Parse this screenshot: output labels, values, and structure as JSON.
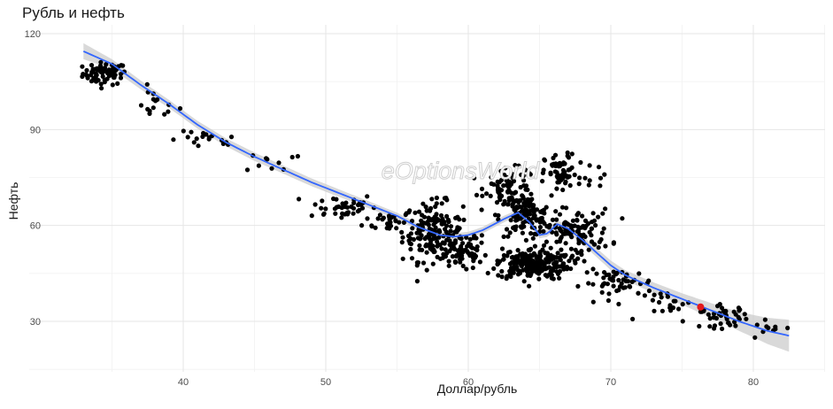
{
  "chart_data": {
    "type": "scatter",
    "title": "Рубль и нефть",
    "xlabel": "Доллар/рубль",
    "ylabel": "Нефть",
    "xlim": [
      31,
      86
    ],
    "ylim": [
      15,
      122
    ],
    "x_ticks": [
      40,
      50,
      60,
      70,
      80
    ],
    "y_ticks": [
      30,
      60,
      90,
      120
    ],
    "grid": true,
    "watermark": "eOptionsWorld",
    "point_color": "#000000",
    "highlight_color": "#e31a1c",
    "smooth_line_color": "#3366ff",
    "ribbon_color": "#cccccc",
    "clusters": [
      {
        "cx": 34.5,
        "cy": 107.5,
        "sx": 1.1,
        "sy": 2.5,
        "n": 70
      },
      {
        "cx": 38.0,
        "cy": 98.0,
        "sx": 1.2,
        "sy": 3.5,
        "n": 15
      },
      {
        "cx": 41.5,
        "cy": 86.5,
        "sx": 1.8,
        "sy": 2.0,
        "n": 18
      },
      {
        "cx": 46.5,
        "cy": 80.0,
        "sx": 1.5,
        "sy": 2.5,
        "n": 10
      },
      {
        "cx": 51.0,
        "cy": 66.0,
        "sx": 1.8,
        "sy": 3.0,
        "n": 40
      },
      {
        "cx": 54.5,
        "cy": 61.5,
        "sx": 1.3,
        "sy": 2.5,
        "n": 30
      },
      {
        "cx": 57.5,
        "cy": 58.0,
        "sx": 1.5,
        "sy": 6.5,
        "n": 160
      },
      {
        "cx": 59.5,
        "cy": 52.0,
        "sx": 1.3,
        "sy": 4.5,
        "n": 70
      },
      {
        "cx": 63.0,
        "cy": 72.0,
        "sx": 1.3,
        "sy": 4.0,
        "n": 80
      },
      {
        "cx": 64.0,
        "cy": 63.0,
        "sx": 1.3,
        "sy": 4.5,
        "n": 120
      },
      {
        "cx": 64.5,
        "cy": 48.0,
        "sx": 1.8,
        "sy": 3.5,
        "n": 220
      },
      {
        "cx": 66.5,
        "cy": 76.0,
        "sx": 0.8,
        "sy": 4.5,
        "n": 60
      },
      {
        "cx": 67.5,
        "cy": 58.0,
        "sx": 1.8,
        "sy": 5.0,
        "n": 110
      },
      {
        "cx": 69.0,
        "cy": 75.0,
        "sx": 1.0,
        "sy": 3.0,
        "n": 10
      },
      {
        "cx": 70.5,
        "cy": 42.0,
        "sx": 1.8,
        "sy": 3.0,
        "n": 50
      },
      {
        "cx": 74.5,
        "cy": 35.0,
        "sx": 1.5,
        "sy": 3.5,
        "n": 25
      },
      {
        "cx": 78.0,
        "cy": 31.5,
        "sx": 1.2,
        "sy": 2.5,
        "n": 40
      },
      {
        "cx": 81.0,
        "cy": 28.0,
        "sx": 1.0,
        "sy": 1.5,
        "n": 10
      }
    ],
    "highlight_point": {
      "x": 76.3,
      "y": 34.5
    },
    "smooth_line": [
      [
        33.0,
        114.5
      ],
      [
        35.0,
        110.5
      ],
      [
        37.0,
        104.0
      ],
      [
        39.0,
        98.0
      ],
      [
        41.0,
        91.5
      ],
      [
        43.0,
        86.0
      ],
      [
        45.0,
        81.5
      ],
      [
        47.0,
        77.5
      ],
      [
        49.0,
        73.5
      ],
      [
        51.0,
        70.0
      ],
      [
        53.0,
        66.5
      ],
      [
        55.0,
        63.0
      ],
      [
        56.5,
        59.5
      ],
      [
        58.0,
        57.0
      ],
      [
        59.0,
        56.5
      ],
      [
        60.0,
        57.0
      ],
      [
        61.0,
        58.5
      ],
      [
        62.5,
        62.0
      ],
      [
        63.5,
        64.0
      ],
      [
        64.3,
        61.0
      ],
      [
        65.0,
        57.0
      ],
      [
        65.6,
        57.5
      ],
      [
        66.2,
        60.5
      ],
      [
        67.0,
        59.0
      ],
      [
        68.0,
        55.5
      ],
      [
        69.0,
        51.5
      ],
      [
        70.0,
        47.5
      ],
      [
        71.0,
        44.5
      ],
      [
        73.0,
        40.5
      ],
      [
        75.0,
        37.0
      ],
      [
        77.0,
        33.5
      ],
      [
        79.0,
        30.0
      ],
      [
        81.0,
        27.0
      ],
      [
        82.5,
        25.5
      ]
    ],
    "ribbon_halfwidth": [
      [
        33.0,
        2.5
      ],
      [
        35.0,
        1.5
      ],
      [
        40.0,
        1.2
      ],
      [
        45.0,
        1.3
      ],
      [
        50.0,
        1.2
      ],
      [
        55.0,
        1.0
      ],
      [
        60.0,
        1.0
      ],
      [
        65.0,
        1.0
      ],
      [
        70.0,
        1.5
      ],
      [
        75.0,
        1.8
      ],
      [
        78.0,
        2.5
      ],
      [
        80.0,
        3.5
      ],
      [
        82.5,
        5.0
      ]
    ]
  }
}
